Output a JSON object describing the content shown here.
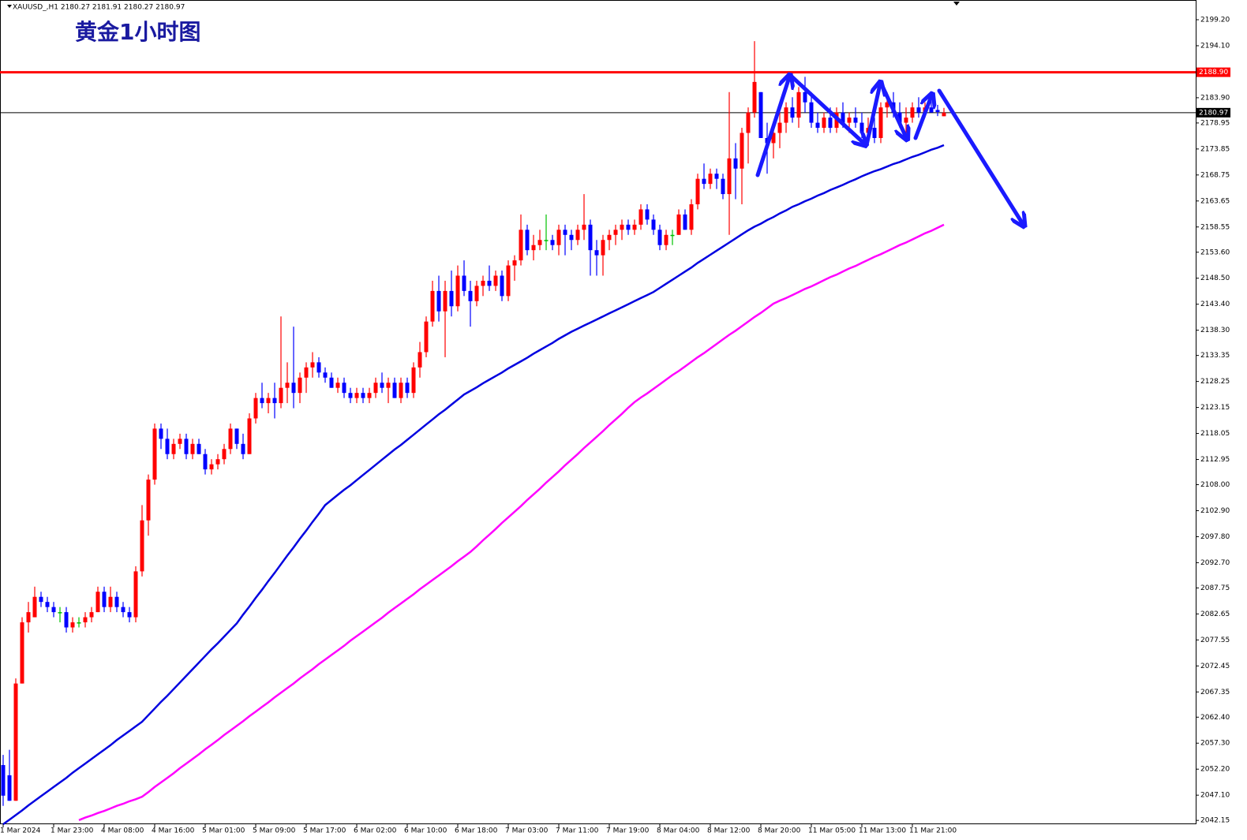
{
  "chart_data": {
    "type": "candlestick",
    "header": "XAUUSD_,H1  2180.27 2181.91 2180.27 2180.97",
    "title": "黄金1小时图",
    "categories": [
      "1 Mar 2024",
      null,
      null,
      null,
      null,
      null,
      null,
      null,
      "1 Mar 23:00",
      null,
      null,
      null,
      null,
      null,
      null,
      null,
      "4 Mar 08:00",
      null,
      null,
      null,
      null,
      null,
      null,
      null,
      "4 Mar 16:00",
      null,
      null,
      null,
      null,
      null,
      null,
      null,
      "5 Mar 01:00",
      null,
      null,
      null,
      null,
      null,
      null,
      null,
      "5 Mar 09:00",
      null,
      null,
      null,
      null,
      null,
      null,
      null,
      "5 Mar 17:00",
      null,
      null,
      null,
      null,
      null,
      null,
      null,
      "6 Mar 02:00",
      null,
      null,
      null,
      null,
      null,
      null,
      null,
      "6 Mar 10:00",
      null,
      null,
      null,
      null,
      null,
      null,
      null,
      "6 Mar 18:00",
      null,
      null,
      null,
      null,
      null,
      null,
      null,
      "7 Mar 03:00",
      null,
      null,
      null,
      null,
      null,
      null,
      null,
      "7 Mar 11:00",
      null,
      null,
      null,
      null,
      null,
      null,
      null,
      "7 Mar 19:00",
      null,
      null,
      null,
      null,
      null,
      null,
      null,
      "8 Mar 04:00",
      null,
      null,
      null,
      null,
      null,
      null,
      null,
      "8 Mar 12:00",
      null,
      null,
      null,
      null,
      null,
      null,
      null,
      "8 Mar 20:00",
      null,
      null,
      null,
      null,
      null,
      null,
      null,
      "11 Mar 05:00",
      null,
      null,
      null,
      null,
      null,
      null,
      null,
      "11 Mar 13:00",
      null,
      null,
      null,
      null,
      null,
      null,
      null,
      "11 Mar 21:00",
      null,
      null,
      null,
      null,
      null
    ],
    "open": [
      2053,
      2051,
      2046,
      2069,
      2081,
      2082,
      2086,
      2085,
      2084,
      2083,
      2083,
      2080,
      2081,
      2081,
      2082,
      2083,
      2087,
      2084,
      2086,
      2084,
      2083,
      2082,
      2091,
      2101,
      2109,
      2119,
      2117,
      2114,
      2116,
      2117,
      2114,
      2116,
      2114,
      2111,
      2112,
      2113,
      2115,
      2119,
      2116,
      2114,
      2121,
      2125,
      2124,
      2125,
      2124,
      2127,
      2128,
      2126,
      2129,
      2131,
      2132,
      2130,
      2129,
      2127,
      2128,
      2126,
      2125,
      2126,
      2125,
      2126,
      2128,
      2127,
      2128,
      2125,
      2128,
      2126,
      2131,
      2134,
      2140,
      2146,
      2142,
      2146,
      2143,
      2149,
      2146,
      2144,
      2147,
      2148,
      2147,
      2149,
      2145,
      2151,
      2152,
      2158,
      2154,
      2155,
      2156,
      2156,
      2155,
      2158,
      2157,
      2156,
      2158,
      2159,
      2154,
      2153,
      2156,
      2157,
      2158,
      2159,
      2158,
      2159,
      2162,
      2160,
      2158,
      2155,
      2157,
      2157,
      2161,
      2158,
      2163,
      2168,
      2167,
      2169,
      2168,
      2165,
      2172,
      2170,
      2177,
      2181,
      2185,
      2176,
      2175,
      2177,
      2179,
      2182,
      2180,
      2185,
      2183,
      2179,
      2178,
      2180,
      2178,
      2181,
      2179,
      2180,
      2179,
      2177,
      2178,
      2176,
      2182,
      2183,
      2181,
      2179,
      2180,
      2182,
      2181,
      2182,
      2181.5,
      2180.27
    ],
    "high": [
      2055,
      2056,
      2070,
      2082,
      2085,
      2088,
      2087,
      2086,
      2085,
      2084,
      2084,
      2082,
      2082,
      2083,
      2084,
      2088,
      2088,
      2088,
      2087,
      2085,
      2084,
      2092,
      2104,
      2110,
      2120,
      2120,
      2119,
      2117,
      2118,
      2118,
      2117,
      2117,
      2115,
      2113,
      2114,
      2116,
      2120,
      2119,
      2118,
      2122,
      2126,
      2128,
      2126,
      2128,
      2141,
      2132,
      2139,
      2130,
      2132,
      2134,
      2133,
      2131,
      2130,
      2129,
      2129,
      2127,
      2127,
      2127,
      2127,
      2129,
      2130,
      2129,
      2129,
      2129,
      2129,
      2132,
      2136,
      2141,
      2148,
      2149,
      2148,
      2150,
      2151,
      2152,
      2148,
      2148,
      2149,
      2151,
      2150,
      2150,
      2152,
      2153,
      2161,
      2159,
      2157,
      2158,
      2161,
      2157,
      2159,
      2159,
      2158,
      2159,
      2165,
      2160,
      2156,
      2157,
      2158,
      2159,
      2160,
      2160,
      2160,
      2163,
      2163,
      2161,
      2159,
      2158,
      2158,
      2162,
      2162,
      2164,
      2169,
      2171,
      2170,
      2170,
      2169,
      2185,
      2175,
      2178,
      2182,
      2195,
      2185,
      2179,
      2178,
      2181,
      2183,
      2184,
      2186,
      2188,
      2185,
      2181,
      2181,
      2182,
      2182,
      2183,
      2181,
      2182,
      2181,
      2180,
      2180,
      2183,
      2185,
      2185,
      2183,
      2182,
      2183,
      2184,
      2183,
      2184,
      2182.5,
      2181.91
    ],
    "low": [
      2045,
      2046,
      2046,
      2069,
      2079,
      2082,
      2084,
      2083,
      2082,
      2081,
      2079,
      2079,
      2080,
      2080,
      2081,
      2083,
      2083,
      2083,
      2083,
      2082,
      2081,
      2081,
      2090,
      2098,
      2108,
      2115,
      2113,
      2113,
      2115,
      2113,
      2113,
      2114,
      2110,
      2110,
      2111,
      2112,
      2114,
      2115,
      2113,
      2114,
      2120,
      2123,
      2122,
      2121,
      2123,
      2124,
      2123,
      2124,
      2126,
      2129,
      2129,
      2128,
      2127,
      2126,
      2125,
      2124,
      2124,
      2124,
      2124,
      2125,
      2126,
      2124,
      2125,
      2124,
      2125,
      2125,
      2129,
      2133,
      2139,
      2140,
      2133,
      2141,
      2142,
      2145,
      2139,
      2143,
      2145,
      2146,
      2146,
      2144,
      2144,
      2148,
      2151,
      2153,
      2152,
      2154,
      2154,
      2154,
      2153,
      2153,
      2154,
      2155,
      2156,
      2149,
      2149,
      2149,
      2154,
      2155,
      2156,
      2157,
      2157,
      2158,
      2159,
      2157,
      2154,
      2154,
      2155,
      2157,
      2158,
      2157,
      2162,
      2166,
      2166,
      2166,
      2164,
      2157,
      2164,
      2163,
      2171,
      2180,
      2176,
      2169,
      2172,
      2174,
      2177,
      2179,
      2178,
      2181,
      2178,
      2177,
      2177,
      2177,
      2177,
      2178,
      2177,
      2178,
      2176,
      2175,
      2175,
      2175,
      2180,
      2180,
      2178,
      2177,
      2179,
      2180,
      2180,
      2181,
      2180.3,
      2180.27
    ],
    "close": [
      2047,
      2046,
      2069,
      2081,
      2083,
      2086,
      2085,
      2084,
      2083,
      2083,
      2080,
      2081,
      2081,
      2082,
      2083,
      2087,
      2084,
      2086,
      2084,
      2083,
      2082,
      2091,
      2101,
      2109,
      2119,
      2117,
      2114,
      2116,
      2117,
      2114,
      2116,
      2114,
      2111,
      2112,
      2113,
      2115,
      2119,
      2116,
      2114,
      2121,
      2125,
      2124,
      2125,
      2124,
      2127,
      2128,
      2126,
      2129,
      2131,
      2132,
      2130,
      2129,
      2127,
      2128,
      2126,
      2125,
      2126,
      2125,
      2126,
      2128,
      2127,
      2128,
      2125,
      2128,
      2126,
      2131,
      2134,
      2140,
      2146,
      2142,
      2146,
      2143,
      2149,
      2146,
      2144,
      2147,
      2148,
      2147,
      2149,
      2145,
      2151,
      2152,
      2158,
      2154,
      2155,
      2156,
      2156,
      2155,
      2158,
      2157,
      2156,
      2158,
      2159,
      2154,
      2153,
      2156,
      2157,
      2158,
      2159,
      2158,
      2159,
      2162,
      2160,
      2158,
      2155,
      2157,
      2157,
      2161,
      2158,
      2163,
      2168,
      2167,
      2169,
      2168,
      2165,
      2172,
      2170,
      2177,
      2181,
      2187,
      2176,
      2175,
      2177,
      2179,
      2182,
      2180,
      2185,
      2183,
      2179,
      2178,
      2180,
      2178,
      2181,
      2179,
      2180,
      2179,
      2177,
      2178,
      2176,
      2182,
      2183,
      2181,
      2179,
      2180,
      2182,
      2181,
      2182,
      2181,
      2181.1,
      2180.97
    ],
    "up_color": "#ff0000",
    "down_color": "#0000ff",
    "doji_color": "#00c000",
    "series": [
      {
        "color": "#0000e0",
        "values": [
          2041.4,
          2042.3,
          2043.2,
          2044.1,
          2045.1,
          2046.0,
          2046.9,
          2047.8,
          2048.7,
          2049.6,
          2050.5,
          2051.5,
          2052.4,
          2053.3,
          2054.2,
          2055.1,
          2056.0,
          2056.9,
          2057.9,
          2058.8,
          2059.7,
          2060.6,
          2061.5,
          2062.8,
          2064.1,
          2065.4,
          2066.6,
          2067.9,
          2069.2,
          2070.5,
          2071.8,
          2073.1,
          2074.4,
          2075.7,
          2076.9,
          2078.2,
          2079.5,
          2080.8,
          2082.5,
          2084.1,
          2085.8,
          2087.4,
          2089.1,
          2090.7,
          2092.4,
          2094.1,
          2095.7,
          2097.4,
          2099.0,
          2100.7,
          2102.3,
          2104.0,
          2105.0,
          2106.0,
          2107.0,
          2107.9,
          2108.9,
          2109.9,
          2110.9,
          2111.9,
          2112.9,
          2113.9,
          2114.9,
          2115.8,
          2116.8,
          2117.8,
          2118.8,
          2119.8,
          2120.8,
          2121.8,
          2122.7,
          2123.7,
          2124.7,
          2125.7,
          2126.4,
          2127.1,
          2127.9,
          2128.6,
          2129.3,
          2130.0,
          2130.8,
          2131.5,
          2132.2,
          2132.9,
          2133.7,
          2134.4,
          2135.1,
          2135.8,
          2136.6,
          2137.3,
          2138.0,
          2138.6,
          2139.2,
          2139.8,
          2140.4,
          2141.0,
          2141.6,
          2142.2,
          2142.8,
          2143.4,
          2144.0,
          2144.6,
          2145.2,
          2145.8,
          2146.6,
          2147.4,
          2148.2,
          2149.0,
          2149.8,
          2150.6,
          2151.5,
          2152.3,
          2153.1,
          2153.9,
          2154.7,
          2155.5,
          2156.3,
          2157.1,
          2157.9,
          2158.6,
          2159.2,
          2159.9,
          2160.5,
          2161.2,
          2161.8,
          2162.5,
          2163.0,
          2163.6,
          2164.1,
          2164.7,
          2165.2,
          2165.8,
          2166.3,
          2166.8,
          2167.4,
          2167.9,
          2168.5,
          2169.0,
          2169.5,
          2169.9,
          2170.4,
          2170.9,
          2171.3,
          2171.8,
          2172.3,
          2172.7,
          2173.2,
          2173.7,
          2174.1,
          2174.6
        ]
      },
      {
        "color": "#ff00ff",
        "values": [
          null,
          null,
          null,
          null,
          null,
          null,
          null,
          null,
          null,
          null,
          null,
          null,
          2042.2,
          2042.7,
          2043.1,
          2043.6,
          2044.0,
          2044.5,
          2045.0,
          2045.4,
          2045.9,
          2046.3,
          2046.8,
          2047.7,
          2048.7,
          2049.6,
          2050.5,
          2051.4,
          2052.4,
          2053.3,
          2054.2,
          2055.1,
          2056.1,
          2057.0,
          2057.9,
          2058.9,
          2059.8,
          2060.7,
          2061.6,
          2062.6,
          2063.5,
          2064.4,
          2065.3,
          2066.3,
          2067.2,
          2068.1,
          2069.0,
          2070.0,
          2070.9,
          2071.8,
          2072.8,
          2073.7,
          2074.6,
          2075.5,
          2076.4,
          2077.4,
          2078.3,
          2079.2,
          2080.1,
          2081.0,
          2081.9,
          2082.9,
          2083.8,
          2084.7,
          2085.6,
          2086.5,
          2087.5,
          2088.4,
          2089.3,
          2090.2,
          2091.1,
          2092.0,
          2093.0,
          2093.9,
          2094.8,
          2095.9,
          2097.1,
          2098.2,
          2099.3,
          2100.5,
          2101.6,
          2102.7,
          2103.8,
          2105.0,
          2106.1,
          2107.2,
          2108.4,
          2109.5,
          2110.6,
          2111.8,
          2112.9,
          2114.0,
          2115.2,
          2116.3,
          2117.4,
          2118.5,
          2119.7,
          2120.8,
          2121.9,
          2123.1,
          2124.2,
          2125.1,
          2125.9,
          2126.8,
          2127.7,
          2128.6,
          2129.5,
          2130.3,
          2131.2,
          2132.1,
          2133.0,
          2133.8,
          2134.7,
          2135.6,
          2136.5,
          2137.4,
          2138.2,
          2139.1,
          2140.0,
          2140.9,
          2141.7,
          2142.6,
          2143.5,
          2144.1,
          2144.6,
          2145.2,
          2145.8,
          2146.4,
          2146.9,
          2147.5,
          2148.1,
          2148.7,
          2149.2,
          2149.8,
          2150.4,
          2150.9,
          2151.5,
          2152.1,
          2152.7,
          2153.2,
          2153.8,
          2154.4,
          2155.0,
          2155.5,
          2156.1,
          2156.7,
          2157.3,
          2157.8,
          2158.4,
          2159.0
        ]
      }
    ],
    "levels": [
      {
        "value": 2188.9,
        "label": "2188.90",
        "color": "#ff0000"
      },
      {
        "value": 2180.97,
        "color": "#000000"
      }
    ],
    "ylim": [
      2041.4,
      2203.07
    ],
    "yticks": [
      {
        "value": 2199.2,
        "label": "2199.20"
      },
      {
        "value": 2194.1,
        "label": "2194.10"
      },
      {
        "value": 2183.9,
        "label": "2183.90"
      },
      2178.95,
      2173.85,
      2168.75,
      2163.65,
      2158.55,
      {
        "value": 2153.6,
        "label": "2153.60"
      },
      {
        "value": 2148.5,
        "label": "2148.50"
      },
      {
        "value": 2143.4,
        "label": "2143.40"
      },
      {
        "value": 2138.3,
        "label": "2138.30"
      },
      2133.35,
      2128.25,
      2123.15,
      2118.05,
      2112.95,
      {
        "value": 2108,
        "label": "2108.00"
      },
      {
        "value": 2102.9,
        "label": "2102.90"
      },
      {
        "value": 2097.8,
        "label": "2097.80"
      },
      {
        "value": 2092.7,
        "label": "2092.70"
      },
      2087.75,
      2082.65,
      2077.55,
      2072.45,
      2067.35,
      {
        "value": 2062.4,
        "label": "2062.40"
      },
      {
        "value": 2057.3,
        "label": "2057.30"
      },
      {
        "value": 2052.2,
        "label": "2052.20"
      },
      {
        "value": 2047.1,
        "label": "2047.10"
      },
      2042.15
    ]
  }
}
